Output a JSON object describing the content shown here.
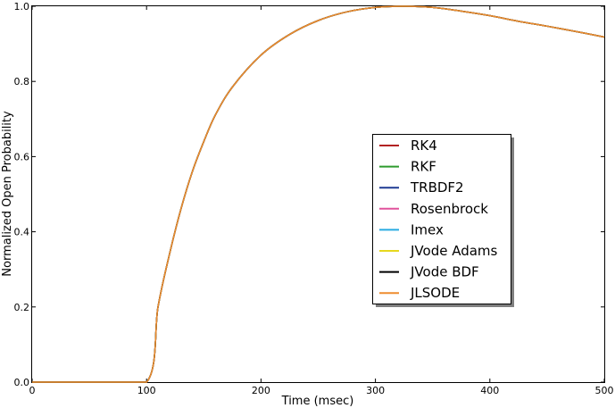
{
  "chart_data": {
    "type": "line",
    "xlabel": "Time (msec)",
    "ylabel": "Normalized Open Probability",
    "xlim": [
      0,
      500
    ],
    "ylim": [
      0,
      1.0
    ],
    "x_ticks": [
      0,
      100,
      200,
      300,
      400,
      500
    ],
    "y_ticks": [
      0.0,
      0.2,
      0.4,
      0.6,
      0.8,
      1.0
    ],
    "x_tick_labels": [
      "0",
      "100",
      "200",
      "300",
      "400",
      "500"
    ],
    "y_tick_labels": [
      "0.0",
      "0.2",
      "0.4",
      "0.6",
      "0.8",
      "1.0"
    ],
    "grid": false,
    "legend_position": "center-right",
    "series": [
      {
        "name": "RK4",
        "color": "#b22222"
      },
      {
        "name": "RKF",
        "color": "#2e9b2e"
      },
      {
        "name": "TRBDF2",
        "color": "#1f3a93"
      },
      {
        "name": "Rosenbrock",
        "color": "#e0529c"
      },
      {
        "name": "Imex",
        "color": "#29abe2"
      },
      {
        "name": "JVode Adams",
        "color": "#e6d81e"
      },
      {
        "name": "JVode BDF",
        "color": "#000000"
      },
      {
        "name": "JLSODE",
        "color": "#ee8c2f"
      }
    ],
    "x": [
      0,
      50,
      100,
      110,
      120,
      130,
      140,
      150,
      160,
      175,
      200,
      225,
      250,
      275,
      300,
      325,
      350,
      375,
      400,
      425,
      450,
      475,
      500
    ],
    "y": [
      0,
      0,
      0,
      0.2,
      0.34,
      0.46,
      0.56,
      0.64,
      0.71,
      0.785,
      0.87,
      0.925,
      0.962,
      0.985,
      0.997,
      1.0,
      0.997,
      0.987,
      0.975,
      0.96,
      0.947,
      0.933,
      0.918
    ]
  }
}
